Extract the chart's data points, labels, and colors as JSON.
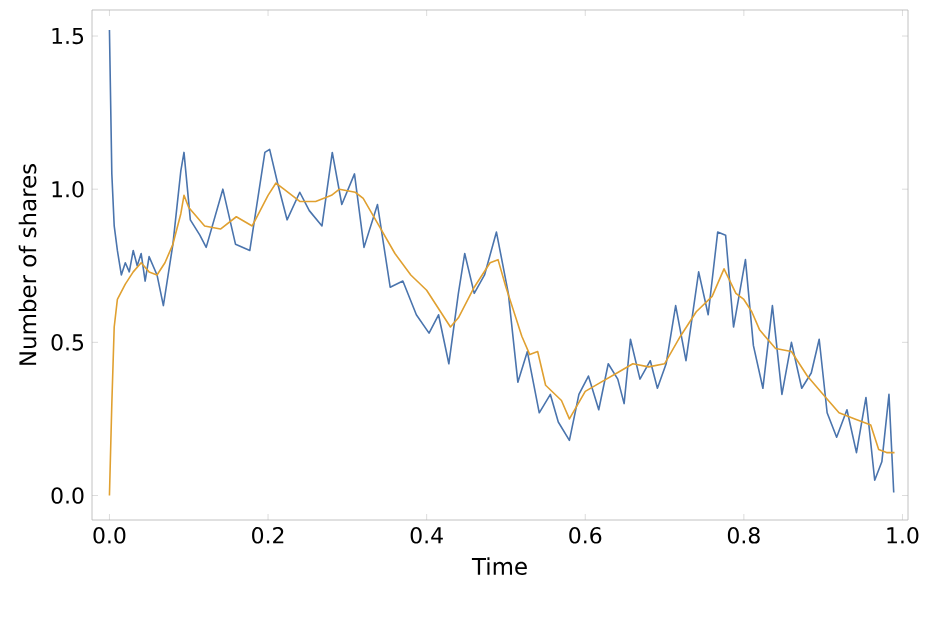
{
  "chart_data": {
    "type": "line",
    "xlabel": "Time",
    "ylabel": "Number of shares",
    "xlim": [
      -0.022,
      1.007
    ],
    "ylim": [
      -0.08,
      1.585
    ],
    "xticks": [
      {
        "value": 0,
        "label": "0.0"
      },
      {
        "value": 0.2,
        "label": "0.2"
      },
      {
        "value": 0.4,
        "label": "0.4"
      },
      {
        "value": 0.6,
        "label": "0.6"
      },
      {
        "value": 0.8,
        "label": "0.8"
      },
      {
        "value": 1,
        "label": "1.0"
      }
    ],
    "yticks": [
      {
        "value": 0,
        "label": "0.0"
      },
      {
        "value": 0.5,
        "label": "0.5"
      },
      {
        "value": 1,
        "label": "1.0"
      },
      {
        "value": 1.5,
        "label": "1.5"
      }
    ],
    "line_style": "solid",
    "series": [
      {
        "color": "#4a74ad",
        "x": [
          0,
          0.003,
          0.006,
          0.01,
          0.015,
          0.02,
          0.025,
          0.03,
          0.035,
          0.04,
          0.045,
          0.05,
          0.06,
          0.068,
          0.08,
          0.09,
          0.094,
          0.102,
          0.114,
          0.122,
          0.143,
          0.159,
          0.177,
          0.196,
          0.202,
          0.212,
          0.224,
          0.24,
          0.252,
          0.268,
          0.281,
          0.293,
          0.309,
          0.321,
          0.338,
          0.354,
          0.37,
          0.387,
          0.403,
          0.415,
          0.428,
          0.44,
          0.448,
          0.46,
          0.473,
          0.488,
          0.503,
          0.515,
          0.527,
          0.542,
          0.556,
          0.566,
          0.58,
          0.592,
          0.604,
          0.617,
          0.629,
          0.641,
          0.649,
          0.657,
          0.669,
          0.682,
          0.691,
          0.702,
          0.714,
          0.727,
          0.743,
          0.755,
          0.767,
          0.777,
          0.787,
          0.802,
          0.812,
          0.824,
          0.836,
          0.848,
          0.86,
          0.873,
          0.885,
          0.895,
          0.905,
          0.917,
          0.93,
          0.942,
          0.954,
          0.965,
          0.974,
          0.983,
          0.989
        ],
        "values": [
          1.52,
          1.05,
          0.88,
          0.8,
          0.72,
          0.76,
          0.73,
          0.8,
          0.75,
          0.79,
          0.7,
          0.78,
          0.72,
          0.62,
          0.82,
          1.06,
          1.12,
          0.9,
          0.85,
          0.81,
          1.0,
          0.82,
          0.8,
          1.12,
          1.13,
          1.02,
          0.9,
          0.99,
          0.93,
          0.88,
          1.12,
          0.95,
          1.05,
          0.81,
          0.95,
          0.68,
          0.7,
          0.59,
          0.53,
          0.59,
          0.43,
          0.66,
          0.79,
          0.66,
          0.72,
          0.86,
          0.66,
          0.37,
          0.47,
          0.27,
          0.33,
          0.24,
          0.18,
          0.33,
          0.39,
          0.28,
          0.43,
          0.38,
          0.3,
          0.51,
          0.38,
          0.44,
          0.35,
          0.43,
          0.62,
          0.44,
          0.73,
          0.59,
          0.86,
          0.85,
          0.55,
          0.77,
          0.49,
          0.35,
          0.62,
          0.33,
          0.5,
          0.35,
          0.4,
          0.51,
          0.27,
          0.19,
          0.28,
          0.14,
          0.32,
          0.05,
          0.11,
          0.33,
          0.01
        ]
      },
      {
        "color": "#e0a030",
        "x": [
          0,
          0.003,
          0.006,
          0.01,
          0.02,
          0.03,
          0.04,
          0.05,
          0.06,
          0.07,
          0.08,
          0.09,
          0.094,
          0.1,
          0.12,
          0.14,
          0.16,
          0.18,
          0.2,
          0.21,
          0.22,
          0.24,
          0.26,
          0.28,
          0.29,
          0.31,
          0.32,
          0.34,
          0.36,
          0.38,
          0.4,
          0.42,
          0.43,
          0.44,
          0.46,
          0.48,
          0.49,
          0.5,
          0.52,
          0.53,
          0.54,
          0.55,
          0.57,
          0.58,
          0.6,
          0.62,
          0.64,
          0.66,
          0.68,
          0.7,
          0.72,
          0.74,
          0.76,
          0.775,
          0.79,
          0.8,
          0.81,
          0.82,
          0.84,
          0.86,
          0.88,
          0.9,
          0.92,
          0.94,
          0.96,
          0.97,
          0.98,
          0.99
        ],
        "values": [
          0,
          0.3,
          0.55,
          0.64,
          0.69,
          0.73,
          0.76,
          0.73,
          0.72,
          0.76,
          0.82,
          0.92,
          0.98,
          0.94,
          0.88,
          0.87,
          0.91,
          0.88,
          0.98,
          1.02,
          1.0,
          0.96,
          0.96,
          0.98,
          1.0,
          0.99,
          0.97,
          0.88,
          0.79,
          0.72,
          0.67,
          0.59,
          0.55,
          0.58,
          0.68,
          0.76,
          0.77,
          0.68,
          0.52,
          0.46,
          0.47,
          0.36,
          0.31,
          0.25,
          0.34,
          0.37,
          0.4,
          0.43,
          0.42,
          0.43,
          0.52,
          0.6,
          0.65,
          0.74,
          0.66,
          0.64,
          0.6,
          0.54,
          0.48,
          0.47,
          0.39,
          0.33,
          0.27,
          0.25,
          0.23,
          0.15,
          0.14,
          0.14
        ]
      }
    ]
  }
}
